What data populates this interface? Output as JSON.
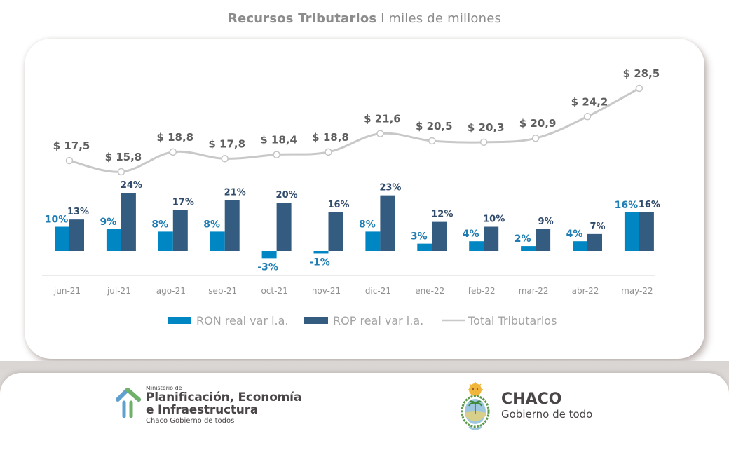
{
  "header": {
    "title_bold": "Recursos Tributarios",
    "title_sep": " l ",
    "title_light": "miles de millones"
  },
  "chart_data": {
    "type": "bar",
    "title": "Recursos Tributarios l miles de millones",
    "xlabel": "",
    "ylabel": "",
    "grid": false,
    "legend_position": "bottom",
    "categories": [
      "jun-21",
      "jul-21",
      "ago-21",
      "sep-21",
      "oct-21",
      "nov-21",
      "dic-21",
      "ene-22",
      "feb-22",
      "mar-22",
      "abr-22",
      "may-22"
    ],
    "series": [
      {
        "name": "RON real var i.a.",
        "type": "bar",
        "color": "#0086c3",
        "values": [
          10,
          9,
          8,
          8,
          -3,
          -1,
          8,
          3,
          4,
          2,
          4,
          16
        ],
        "labels": [
          "10%",
          "9%",
          "8%",
          "8%",
          "-3%",
          "-1%",
          "8%",
          "3%",
          "4%",
          "2%",
          "4%",
          "16%"
        ]
      },
      {
        "name": "ROP real var i.a.",
        "type": "bar",
        "color": "#345b80",
        "values": [
          13,
          24,
          17,
          21,
          20,
          16,
          23,
          12,
          10,
          9,
          7,
          16
        ],
        "labels": [
          "13%",
          "24%",
          "17%",
          "21%",
          "20%",
          "16%",
          "23%",
          "12%",
          "10%",
          "9%",
          "7%",
          "16%"
        ]
      },
      {
        "name": "Total Tributarios",
        "type": "line",
        "color": "#c8c8c8",
        "values": [
          17.5,
          15.8,
          18.8,
          17.8,
          18.4,
          18.8,
          21.6,
          20.5,
          20.3,
          20.9,
          24.2,
          28.5
        ],
        "labels": [
          "$ 17,5",
          "$ 15,8",
          "$ 18,8",
          "$ 17,8",
          "$ 18,4",
          "$ 18,8",
          "$ 21,6",
          "$ 20,5",
          "$ 20,3",
          "$ 20,9",
          "$ 24,2",
          "$ 28,5"
        ]
      }
    ]
  },
  "footer": {
    "ministry": {
      "prefix": "Ministerio de",
      "line1": "Planificación, Economía",
      "line2": "e Infraestructura",
      "tagline": "Chaco Gobierno de todos"
    },
    "province": {
      "name": "CHACO",
      "tagline": "Gobierno de todo"
    }
  }
}
